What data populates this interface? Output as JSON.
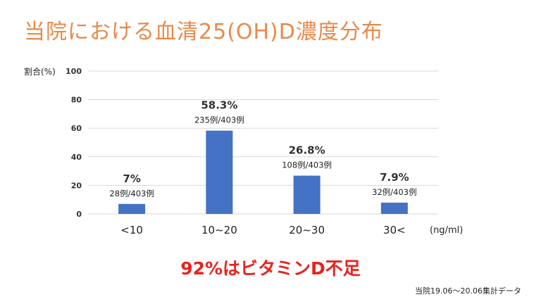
{
  "title": "当院における血清25(OH)D濃度分布",
  "headline": "92%はビタミンD不足",
  "footnote": "当院19.06〜20.06集計データ",
  "colors": {
    "title": "#E8894A",
    "bar": "#4472C4",
    "headline": "#E8231F",
    "grid": "#D9D9D9"
  },
  "chart_data": {
    "type": "bar",
    "ylabel": "割合(%)",
    "xunit": "(ng/ml)",
    "ylim": [
      0,
      100
    ],
    "yticks": [
      0,
      20,
      40,
      60,
      80,
      100
    ],
    "grid": true,
    "categories": [
      "<10",
      "10~20",
      "20~30",
      "30<"
    ],
    "values": [
      7,
      58.3,
      26.8,
      7.9
    ],
    "value_labels": [
      "7%",
      "58.3%",
      "26.8%",
      "7.9%"
    ],
    "count_labels": [
      "28例/403例",
      "235例/403例",
      "108例/403例",
      "32例/403例"
    ]
  }
}
